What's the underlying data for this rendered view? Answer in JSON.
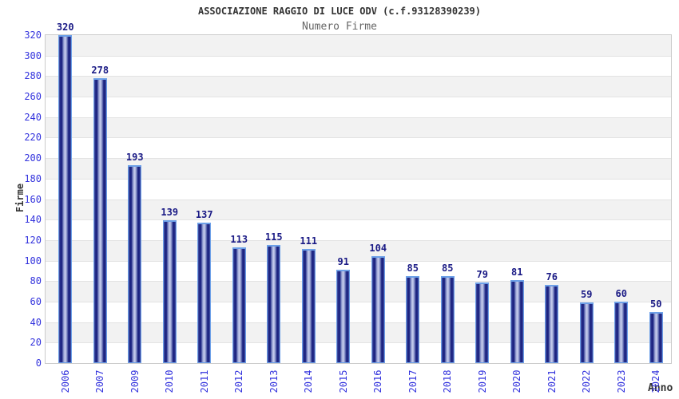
{
  "chart_data": {
    "type": "bar",
    "title": "ASSOCIAZIONE RAGGIO DI LUCE ODV (c.f.93128390239)",
    "subtitle": "Numero Firme",
    "xlabel": "Anno",
    "ylabel": "Firme",
    "categories": [
      "2006",
      "2007",
      "2009",
      "2010",
      "2011",
      "2012",
      "2013",
      "2014",
      "2015",
      "2016",
      "2017",
      "2018",
      "2019",
      "2020",
      "2021",
      "2022",
      "2023",
      "2024"
    ],
    "values": [
      320,
      278,
      193,
      139,
      137,
      113,
      115,
      111,
      91,
      104,
      85,
      85,
      79,
      81,
      76,
      59,
      60,
      50
    ],
    "ylim": [
      0,
      320
    ],
    "ytick_step": 20,
    "yticks": [
      0,
      20,
      40,
      60,
      80,
      100,
      120,
      140,
      160,
      180,
      200,
      220,
      240,
      260,
      280,
      300,
      320
    ],
    "grid": "alternating-horizontal-bands",
    "legend": "none",
    "value_labels": "above-bars"
  },
  "colors": {
    "title": "#333333",
    "subtitle": "#666666",
    "tick_label": "#3333dd",
    "value_label": "#1a1a85",
    "bar_border": "#6da0e8",
    "bar_edge": "#4a58a8",
    "bar_dark": "#1a2280",
    "bar_mid": "#8d98cd",
    "bar_light": "#c2c9ea",
    "band_gray": "#f2f2f2",
    "band_white": "#ffffff",
    "grid_line": "#e3e3e3",
    "plot_border": "#cccccc"
  }
}
